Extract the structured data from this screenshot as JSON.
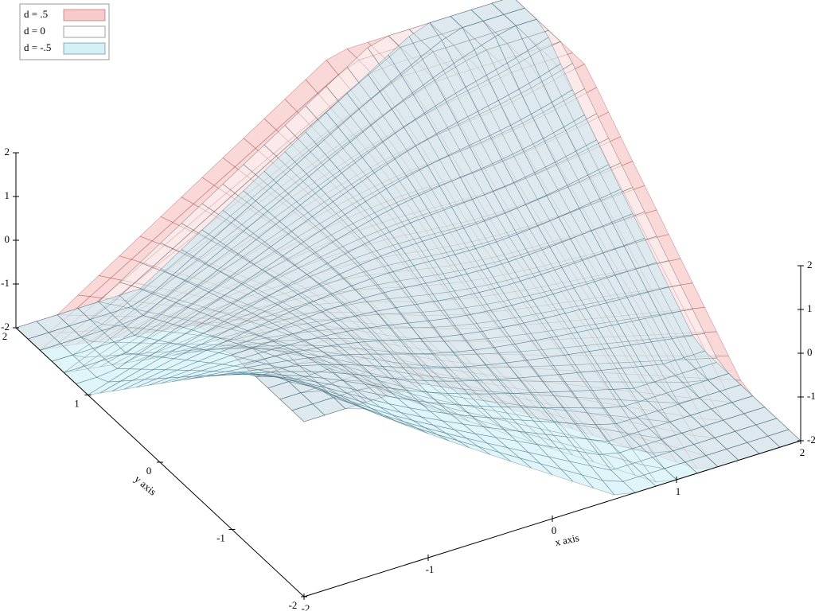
{
  "chart_data": {
    "type": "surface3d",
    "x_label": "x axis",
    "y_label": "y axis",
    "xlim": [
      -2,
      2
    ],
    "ylim": [
      -2,
      2
    ],
    "zlim": [
      -2,
      2
    ],
    "xticks": [
      -2,
      -1,
      0,
      1,
      2
    ],
    "yticks": [
      -2,
      -1,
      0,
      1,
      2
    ],
    "zticks": [
      -2,
      -1,
      0,
      1,
      2
    ],
    "series": [
      {
        "name": "d = .5",
        "color": "#f4a8a8",
        "line_color": "#a04040",
        "level": 0.5
      },
      {
        "name": "d = 0",
        "color": "#ffffff",
        "line_color": "#404040",
        "level": 0
      },
      {
        "name": "d = -.5",
        "color": "#b8e8f4",
        "line_color": "#306070",
        "level": -0.5
      }
    ]
  }
}
